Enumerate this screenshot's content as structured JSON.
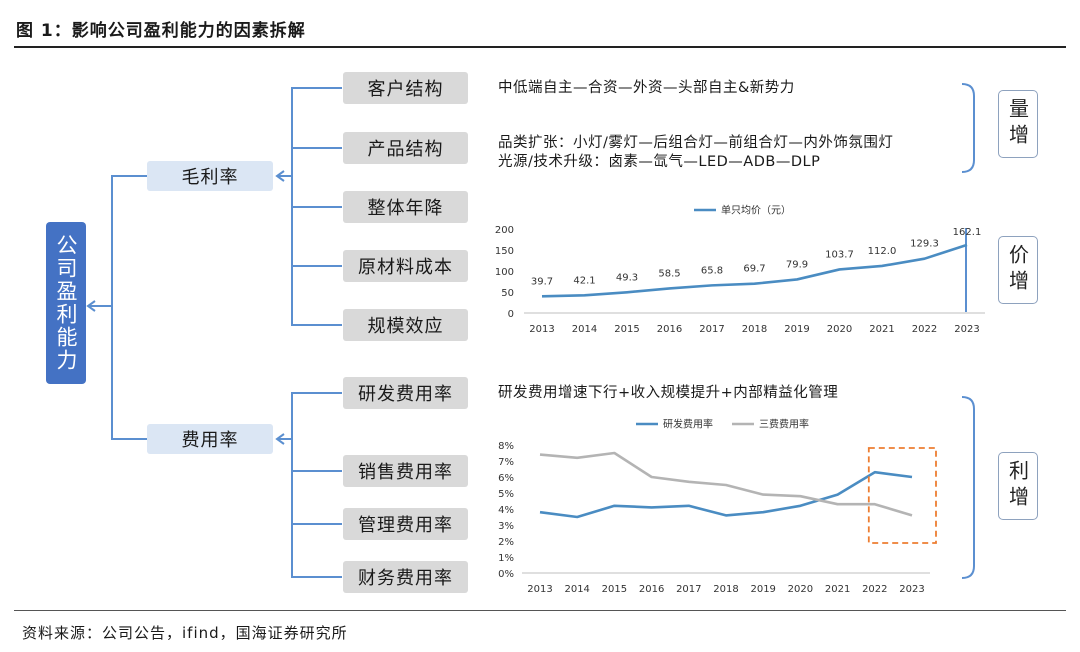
{
  "title": "图 1：影响公司盈利能力的因素拆解",
  "source": "资料来源：公司公告，ifind，国海证券研究所",
  "root": "公司盈利能力",
  "branches": [
    {
      "label": "毛利率",
      "children": [
        "客户结构",
        "产品结构",
        "整体年降",
        "原材料成本",
        "规模效应"
      ]
    },
    {
      "label": "费用率",
      "children": [
        "研发费用率",
        "销售费用率",
        "管理费用率",
        "财务费用率"
      ]
    }
  ],
  "descriptions": {
    "customer": "中低端自主—合资—外资—头部自主&新势力",
    "product_line1": "品类扩张：小灯/雾灯—后组合灯—前组合灯—内外饰氛围灯",
    "product_line2": "光源/技术升级：卤素—氙气—LED—ADB—DLP",
    "rd": "研发费用增速下行+收入规模提升+内部精益化管理"
  },
  "results": [
    "量增",
    "价增",
    "利增"
  ],
  "colors": {
    "accent": "#4472c4",
    "line_blue": "#4a8cc2",
    "line_gray": "#b4b4b4",
    "highlight": "#ed7d31",
    "connector": "#5b8fd0"
  },
  "chart_data": [
    {
      "type": "line",
      "title": "",
      "x": [
        "2013",
        "2014",
        "2015",
        "2016",
        "2017",
        "2018",
        "2019",
        "2020",
        "2021",
        "2022",
        "2023"
      ],
      "series": [
        {
          "name": "单只均价（元）",
          "values": [
            39.7,
            42.1,
            49.3,
            58.5,
            65.8,
            69.7,
            79.9,
            103.7,
            112.0,
            129.3,
            162.1
          ]
        }
      ],
      "data_labels": [
        "39.7",
        "42.1",
        "49.3",
        "58.5",
        "65.8",
        "69.7",
        "79.9",
        "103.7",
        "112.0",
        "129.3",
        "162.1"
      ],
      "ylim": [
        0,
        200
      ],
      "yticks": [
        "0",
        "50",
        "100",
        "150",
        "200"
      ],
      "grid": false,
      "legend": "top"
    },
    {
      "type": "line",
      "title": "",
      "x": [
        "2013",
        "2014",
        "2015",
        "2016",
        "2017",
        "2018",
        "2019",
        "2020",
        "2021",
        "2022",
        "2023"
      ],
      "series": [
        {
          "name": "研发费用率",
          "values": [
            3.8,
            3.5,
            4.2,
            4.1,
            4.2,
            3.6,
            3.8,
            4.2,
            4.9,
            6.3,
            6.0
          ]
        },
        {
          "name": "三费费用率",
          "values": [
            7.4,
            7.2,
            7.5,
            6.0,
            5.7,
            5.5,
            4.9,
            4.8,
            4.3,
            4.3,
            3.6
          ]
        }
      ],
      "ylim": [
        0,
        8
      ],
      "yticks": [
        "0%",
        "1%",
        "2%",
        "3%",
        "4%",
        "5%",
        "6%",
        "7%",
        "8%"
      ],
      "grid": false,
      "legend": "top",
      "highlight": [
        "2022",
        "2023"
      ]
    }
  ]
}
